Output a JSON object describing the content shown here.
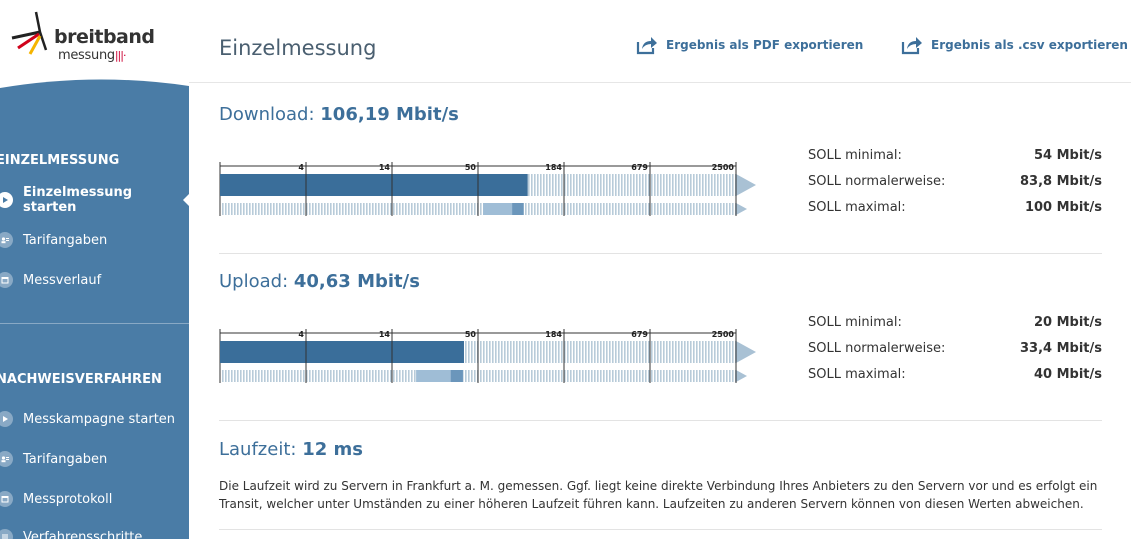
{
  "logo": {
    "line1": "breitband",
    "line2": "messung",
    "bars": "|||·"
  },
  "sidebar": {
    "sections": [
      {
        "title": "EINZELMESSUNG",
        "items": [
          {
            "label": "Einzelmessung starten",
            "icon": "play-icon",
            "active": true
          },
          {
            "label": "Tarifangaben",
            "icon": "person-card-icon",
            "active": false
          },
          {
            "label": "Messverlauf",
            "icon": "calendar-icon",
            "active": false
          }
        ]
      },
      {
        "title": "NACHWEISVERFAHREN",
        "items": [
          {
            "label": "Messkampagne starten",
            "icon": "play-icon",
            "active": false
          },
          {
            "label": "Tarifangaben",
            "icon": "person-card-icon",
            "active": false
          },
          {
            "label": "Messprotokoll",
            "icon": "calendar-icon",
            "active": false
          },
          {
            "label": "Verfahrensschritte",
            "icon": "list-icon",
            "active": false
          }
        ]
      }
    ]
  },
  "header": {
    "title": "Einzelmessung",
    "export_pdf": "Ergebnis als PDF exportieren",
    "export_csv": "Ergebnis als .csv exportieren"
  },
  "download": {
    "label": "Download:",
    "value": "106,19 Mbit/s",
    "measured": 106.19,
    "soll": [
      {
        "label": "SOLL minimal:",
        "value": "54 Mbit/s",
        "num": 54
      },
      {
        "label": "SOLL normalerweise:",
        "value": "83,8 Mbit/s",
        "num": 83.8
      },
      {
        "label": "SOLL maximal:",
        "value": "100 Mbit/s",
        "num": 100
      }
    ]
  },
  "upload": {
    "label": "Upload:",
    "value": "40,63 Mbit/s",
    "measured": 40.63,
    "soll": [
      {
        "label": "SOLL minimal:",
        "value": "20 Mbit/s",
        "num": 20
      },
      {
        "label": "SOLL normalerweise:",
        "value": "33,4 Mbit/s",
        "num": 33.4
      },
      {
        "label": "SOLL maximal:",
        "value": "40 Mbit/s",
        "num": 40
      }
    ]
  },
  "scale_ticks": [
    "4",
    "14",
    "50",
    "184",
    "679",
    "2500"
  ],
  "latency": {
    "label": "Laufzeit:",
    "value": "12 ms",
    "description": "Die Laufzeit wird zu Servern in Frankfurt a. M. gemessen. Ggf. liegt keine direkte Verbindung Ihres Anbieters zu den Servern vor und es erfolgt ein Transit, welcher unter Umständen zu einer höheren Laufzeit führen kann. Laufzeiten zu anderen Servern können von diesen Werten abweichen."
  },
  "colors": {
    "sidebar": "#4a7ca6",
    "accent": "#3d6f9a",
    "bar_fill": "#3a6e9a",
    "bar_light": "#9fbdd6",
    "bar_mid": "#6b96bb",
    "track": "#b8cbd9"
  }
}
